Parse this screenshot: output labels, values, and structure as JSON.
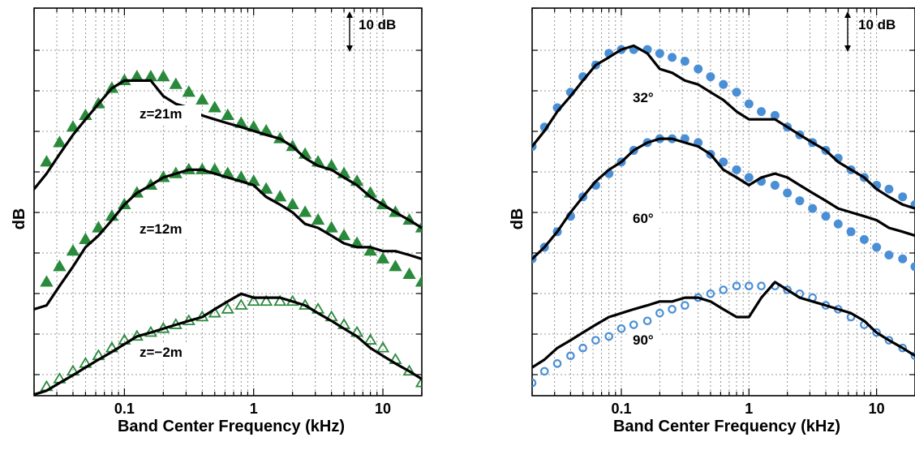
{
  "figure": {
    "panels": [
      {
        "scale_bar_label": "10 dB"
      },
      {
        "scale_bar_label": "10 dB"
      }
    ]
  },
  "colors": {
    "left_marker": "#2a8a3c",
    "right_marker": "#4a8fd6",
    "line": "#000000",
    "grid": "#7a7a7a"
  },
  "chart_data": [
    {
      "type": "line",
      "xlabel": "Band Center Frequency (kHz)",
      "ylabel": "dB",
      "xscale": "log",
      "xlim": [
        0.02,
        20
      ],
      "xticks": [
        0.1,
        1,
        10
      ],
      "xtick_labels": [
        "0.1",
        "1",
        "10"
      ],
      "ylim": [
        0,
        100
      ],
      "grid": true,
      "scale_bar": "10 dB",
      "annotations": [
        "z=21m",
        "z=12m",
        "z=−2m"
      ],
      "series": [
        {
          "marker": "filled-triangle",
          "x": [
            0.025,
            0.0315,
            0.04,
            0.05,
            0.063,
            0.08,
            0.1,
            0.125,
            0.16,
            0.2,
            0.25,
            0.315,
            0.4,
            0.5,
            0.63,
            0.8,
            1,
            1.25,
            1.6,
            2,
            2.5,
            3.15,
            4,
            5,
            6.3,
            8,
            10,
            12.5,
            16,
            20
          ],
          "y": [
            60.3,
            65.3,
            69.3,
            72.3,
            75.3,
            79.3,
            81.3,
            82.3,
            82.3,
            82.3,
            80.3,
            78.3,
            76.3,
            74.3,
            72.3,
            70.3,
            69.3,
            68.3,
            66.3,
            64.3,
            62.3,
            60.3,
            59.3,
            57.3,
            55.3,
            52.3,
            49.3,
            47.3,
            45.3,
            43.3
          ]
        },
        {
          "marker": "line",
          "x": [
            0.02,
            0.025,
            0.0315,
            0.04,
            0.05,
            0.063,
            0.08,
            0.1,
            0.125,
            0.16,
            0.2,
            0.25,
            0.315,
            0.4,
            0.5,
            0.63,
            0.8,
            1,
            1.25,
            1.6,
            2,
            2.5,
            3.15,
            4,
            5,
            6.3,
            8,
            10,
            12.5,
            16,
            20
          ],
          "y": [
            53.3,
            57.3,
            62.3,
            67.3,
            71.3,
            75.3,
            79.3,
            81.3,
            81.3,
            81.3,
            77.3,
            75.3,
            74.3,
            72.3,
            71.3,
            70.3,
            69.3,
            68.3,
            67.3,
            66.3,
            64.3,
            61.3,
            59.3,
            58.3,
            56.3,
            54.3,
            51.3,
            49.3,
            47.3,
            45.3,
            43.3
          ]
        },
        {
          "marker": "filled-triangle",
          "x": [
            0.025,
            0.0315,
            0.04,
            0.05,
            0.063,
            0.08,
            0.1,
            0.125,
            0.16,
            0.2,
            0.25,
            0.315,
            0.4,
            0.5,
            0.63,
            0.8,
            1,
            1.25,
            1.6,
            2,
            2.5,
            3.15,
            4,
            5,
            6.3,
            8,
            10,
            12.5,
            16,
            20
          ],
          "y": [
            29.3,
            33.3,
            37.3,
            40.3,
            43.3,
            46.3,
            49.3,
            52.3,
            54.3,
            56.3,
            57.3,
            58.3,
            58.3,
            58.3,
            57.3,
            56.3,
            55.3,
            53.3,
            51.3,
            49.3,
            47.3,
            45.3,
            43.3,
            41.3,
            39.3,
            37.3,
            35.3,
            33.3,
            31.3,
            29.3
          ]
        },
        {
          "marker": "line",
          "x": [
            0.02,
            0.025,
            0.0315,
            0.04,
            0.05,
            0.063,
            0.08,
            0.1,
            0.125,
            0.16,
            0.2,
            0.25,
            0.315,
            0.4,
            0.5,
            0.63,
            0.8,
            1,
            1.25,
            1.6,
            2,
            2.5,
            3.15,
            4,
            5,
            6.3,
            8,
            10,
            12.5,
            16,
            20
          ],
          "y": [
            22.3,
            23.3,
            28.3,
            33.3,
            38.3,
            41.3,
            45.3,
            49.3,
            52.3,
            54.3,
            56.3,
            57.3,
            58.3,
            58.3,
            57.3,
            56.3,
            55.3,
            54.3,
            51.3,
            49.3,
            47.3,
            44.3,
            43.3,
            41.3,
            39.3,
            38.3,
            38.3,
            37.3,
            37.3,
            36.3,
            35.3
          ]
        },
        {
          "marker": "open-triangle",
          "x": [
            0.025,
            0.0315,
            0.04,
            0.05,
            0.063,
            0.08,
            0.1,
            0.125,
            0.16,
            0.2,
            0.25,
            0.315,
            0.4,
            0.5,
            0.63,
            0.8,
            1,
            1.25,
            1.6,
            2,
            2.5,
            3.15,
            4,
            5,
            6.3,
            8,
            10,
            12.5,
            16,
            20
          ],
          "y": [
            2.3,
            4.3,
            6.3,
            8.3,
            10.3,
            12.3,
            14.3,
            15.3,
            16.3,
            17.3,
            18.3,
            19.3,
            20.3,
            21.3,
            22.3,
            23.3,
            24.3,
            24.3,
            24.3,
            24.3,
            23.3,
            22.3,
            20.3,
            18.3,
            16.3,
            14.3,
            12.3,
            9.3,
            6.3,
            3.3
          ]
        },
        {
          "marker": "line",
          "x": [
            0.02,
            0.025,
            0.0315,
            0.04,
            0.05,
            0.063,
            0.08,
            0.1,
            0.125,
            0.16,
            0.2,
            0.25,
            0.315,
            0.4,
            0.5,
            0.63,
            0.8,
            1,
            1.25,
            1.6,
            2,
            2.5,
            3.15,
            4,
            5,
            6.3,
            8,
            10,
            12.5,
            16,
            20
          ],
          "y": [
            0.3,
            1.3,
            3.3,
            5.3,
            7.3,
            9.3,
            11.3,
            13.3,
            15.3,
            16.3,
            17.3,
            18.3,
            19.3,
            20.3,
            22.3,
            24.3,
            26.3,
            25.3,
            25.3,
            25.3,
            24.3,
            23.3,
            21.3,
            19.3,
            17.3,
            15.3,
            12.3,
            10.3,
            8.3,
            6.3,
            4.3
          ]
        }
      ]
    },
    {
      "type": "line",
      "xlabel": "Band Center Frequency (kHz)",
      "ylabel": "dB",
      "xscale": "log",
      "xlim": [
        0.02,
        20
      ],
      "xticks": [
        0.1,
        1,
        10
      ],
      "xtick_labels": [
        "0.1",
        "1",
        "10"
      ],
      "ylim": [
        0,
        100
      ],
      "grid": true,
      "scale_bar": "10 dB",
      "annotations": [
        "32°",
        "60°",
        "90°"
      ],
      "series": [
        {
          "marker": "filled-circle",
          "x": [
            0.02,
            0.025,
            0.0315,
            0.04,
            0.05,
            0.063,
            0.08,
            0.1,
            0.125,
            0.16,
            0.2,
            0.25,
            0.315,
            0.4,
            0.5,
            0.63,
            0.8,
            1,
            1.25,
            1.6,
            2,
            2.5,
            3.15,
            4,
            5,
            6.3,
            8,
            10,
            12.5,
            16,
            20
          ],
          "y": [
            64.3,
            69.3,
            74.3,
            78.3,
            82.3,
            85.3,
            88.3,
            89.3,
            89.3,
            89.3,
            88.3,
            87.3,
            86.3,
            84.3,
            82.3,
            80.3,
            78.3,
            75.3,
            73.3,
            72.3,
            69.3,
            67.3,
            65.3,
            63.3,
            61.3,
            58.3,
            56.3,
            54.3,
            53.3,
            51.3,
            49.3
          ]
        },
        {
          "marker": "line",
          "x": [
            0.02,
            0.025,
            0.0315,
            0.04,
            0.05,
            0.063,
            0.08,
            0.1,
            0.125,
            0.16,
            0.2,
            0.25,
            0.315,
            0.4,
            0.5,
            0.63,
            0.8,
            1,
            1.25,
            1.6,
            2,
            2.5,
            3.15,
            4,
            5,
            6.3,
            8,
            10,
            12.5,
            16,
            20
          ],
          "y": [
            64.3,
            68.3,
            73.3,
            77.3,
            81.3,
            85.3,
            87.3,
            89.3,
            90.3,
            88.3,
            84.3,
            83.3,
            81.3,
            80.3,
            78.3,
            76.3,
            73.3,
            71.3,
            71.3,
            71.3,
            69.3,
            67.3,
            65.3,
            63.3,
            60.3,
            58.3,
            56.3,
            53.3,
            51.3,
            49.3,
            48.3
          ]
        },
        {
          "marker": "filled-circle",
          "x": [
            0.02,
            0.025,
            0.0315,
            0.04,
            0.05,
            0.063,
            0.08,
            0.1,
            0.125,
            0.16,
            0.2,
            0.25,
            0.315,
            0.4,
            0.5,
            0.63,
            0.8,
            1,
            1.25,
            1.6,
            2,
            2.5,
            3.15,
            4,
            5,
            6.3,
            8,
            10,
            12.5,
            16,
            20
          ],
          "y": [
            35.3,
            38.3,
            42.3,
            46.3,
            51.3,
            54.3,
            57.3,
            60.3,
            63.3,
            65.3,
            66.3,
            66.3,
            66.3,
            65.3,
            62.3,
            60.3,
            58.3,
            56.3,
            55.3,
            54.3,
            52.3,
            50.3,
            48.3,
            46.3,
            44.3,
            42.3,
            40.3,
            38.3,
            36.3,
            35.3,
            33.3
          ]
        },
        {
          "marker": "line",
          "x": [
            0.02,
            0.025,
            0.0315,
            0.04,
            0.05,
            0.063,
            0.08,
            0.1,
            0.125,
            0.16,
            0.2,
            0.25,
            0.315,
            0.4,
            0.5,
            0.63,
            0.8,
            1,
            1.25,
            1.6,
            2,
            2.5,
            3.15,
            4,
            5,
            6.3,
            8,
            10,
            12.5,
            16,
            20
          ],
          "y": [
            35.3,
            38.3,
            42.3,
            47.3,
            51.3,
            55.3,
            58.3,
            60.3,
            63.3,
            65.3,
            66.3,
            66.3,
            65.3,
            64.3,
            62.3,
            58.3,
            56.3,
            54.3,
            56.3,
            57.3,
            56.3,
            54.3,
            52.3,
            50.3,
            48.3,
            47.3,
            46.3,
            45.3,
            43.3,
            42.3,
            41.3
          ]
        },
        {
          "marker": "open-circle",
          "x": [
            0.02,
            0.025,
            0.0315,
            0.04,
            0.05,
            0.063,
            0.08,
            0.1,
            0.125,
            0.16,
            0.2,
            0.25,
            0.315,
            0.4,
            0.5,
            0.63,
            0.8,
            1,
            1.25,
            1.6,
            2,
            2.5,
            3.15,
            4,
            5,
            6.3,
            8,
            10,
            12.5,
            16,
            20
          ],
          "y": [
            3.3,
            6.3,
            8.3,
            10.3,
            12.3,
            14.3,
            15.3,
            17.3,
            18.3,
            19.3,
            21.3,
            22.3,
            23.3,
            25.3,
            26.3,
            27.3,
            28.3,
            28.3,
            28.3,
            28.3,
            27.3,
            26.3,
            25.3,
            23.3,
            22.3,
            20.3,
            18.3,
            16.3,
            14.3,
            12.3,
            10.3
          ]
        },
        {
          "marker": "line",
          "x": [
            0.02,
            0.025,
            0.0315,
            0.04,
            0.05,
            0.063,
            0.08,
            0.1,
            0.125,
            0.16,
            0.2,
            0.25,
            0.315,
            0.4,
            0.5,
            0.63,
            0.8,
            1,
            1.25,
            1.6,
            2,
            2.5,
            3.15,
            4,
            5,
            6.3,
            8,
            10,
            12.5,
            16,
            20
          ],
          "y": [
            7.3,
            9.3,
            12.3,
            14.3,
            16.3,
            18.3,
            20.3,
            21.3,
            22.3,
            23.3,
            24.3,
            24.3,
            25.3,
            25.3,
            24.3,
            22.3,
            20.3,
            20.3,
            25.3,
            29.3,
            27.3,
            25.3,
            24.3,
            23.3,
            22.3,
            21.3,
            19.3,
            16.3,
            14.3,
            12.3,
            10.3
          ]
        }
      ]
    }
  ]
}
